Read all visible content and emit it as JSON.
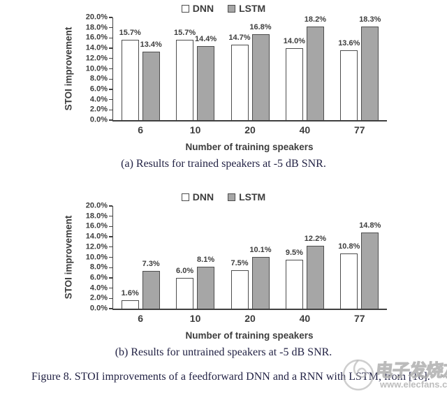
{
  "figure_caption": "Figure 8.  STOI improvements of a feedforward DNN and a RNN with LSTM, from [16].",
  "watermark": {
    "brand": "电子发烧友",
    "url": "www.elecfans.com"
  },
  "colors": {
    "dnn_fill": "#ffffff",
    "lstm_fill": "#a6a6a6",
    "bar_border": "#4d4d4d",
    "axis": "#404040",
    "chart_text": "#3d3d3d",
    "caption_text": "#222244"
  },
  "chart_data": [
    {
      "type": "bar",
      "caption": "(a) Results for trained speakers at -5 dB SNR.",
      "categories": [
        "6",
        "10",
        "20",
        "40",
        "77"
      ],
      "series": [
        {
          "name": "DNN",
          "values": [
            15.7,
            15.7,
            14.7,
            14.0,
            13.6
          ]
        },
        {
          "name": "LSTM",
          "values": [
            13.4,
            14.4,
            16.8,
            18.2,
            18.3
          ]
        }
      ],
      "xlabel": "Number of training speakers",
      "ylabel": "STOI improvement",
      "ylim": [
        0,
        20
      ],
      "ytick_step": 2,
      "ytick_format": "percent_one_decimal",
      "value_labels": true,
      "legend_position": "top-center",
      "grid": false
    },
    {
      "type": "bar",
      "caption": "(b) Results for untrained speakers at -5 dB SNR.",
      "categories": [
        "6",
        "10",
        "20",
        "40",
        "77"
      ],
      "series": [
        {
          "name": "DNN",
          "values": [
            1.6,
            6.0,
            7.5,
            9.5,
            10.8
          ]
        },
        {
          "name": "LSTM",
          "values": [
            7.3,
            8.1,
            10.1,
            12.2,
            14.8
          ]
        }
      ],
      "xlabel": "Number of training speakers",
      "ylabel": "STOI improvement",
      "ylim": [
        0,
        20
      ],
      "ytick_step": 2,
      "ytick_format": "percent_one_decimal",
      "value_labels": true,
      "legend_position": "top-center",
      "grid": false
    }
  ]
}
